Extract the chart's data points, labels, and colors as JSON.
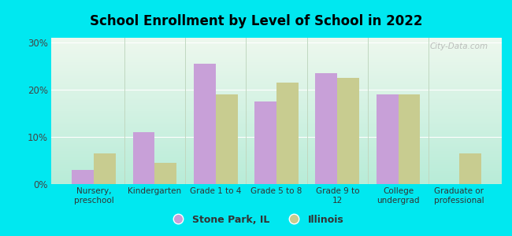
{
  "title": "School Enrollment by Level of School in 2022",
  "categories": [
    "Nursery,\npreschool",
    "Kindergarten",
    "Grade 1 to 4",
    "Grade 5 to 8",
    "Grade 9 to\n12",
    "College\nundergrad",
    "Graduate or\nprofessional"
  ],
  "stone_park": [
    3.0,
    11.0,
    25.5,
    17.5,
    23.5,
    19.0,
    0.0
  ],
  "illinois": [
    6.5,
    4.5,
    19.0,
    21.5,
    22.5,
    19.0,
    6.5
  ],
  "stone_park_color": "#c8a0d8",
  "illinois_color": "#c8cc90",
  "background_outer": "#00e8f0",
  "background_inner_top": "#eef8ee",
  "background_inner_bottom": "#b8ecd8",
  "ylim": [
    0,
    31
  ],
  "yticks": [
    0,
    10,
    20,
    30
  ],
  "yticklabels": [
    "0%",
    "10%",
    "20%",
    "30%"
  ],
  "bar_width": 0.36,
  "legend_labels": [
    "Stone Park, IL",
    "Illinois"
  ],
  "watermark": "City-Data.com",
  "grid_color": "#ffffff",
  "sep_color": "#c0d8c0"
}
